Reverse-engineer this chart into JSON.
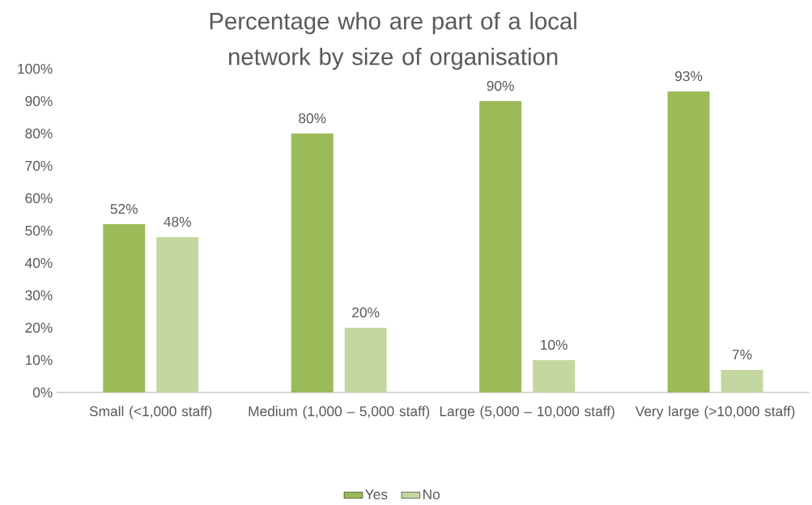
{
  "chart_data": {
    "type": "bar",
    "title": "Percentage who are part of a local network by size of organisation",
    "categories": [
      "Small (<1,000 staff)",
      "Medium (1,000 – 5,000 staff)",
      "Large (5,000 – 10,000 staff)",
      "Very large (>10,000 staff)"
    ],
    "series": [
      {
        "name": "Yes",
        "color": "#9bbb59",
        "values": [
          52,
          80,
          90,
          93
        ],
        "value_labels": [
          "52%",
          "80%",
          "90%",
          "93%"
        ]
      },
      {
        "name": "No",
        "color": "#c4d7a1",
        "values": [
          48,
          20,
          10,
          7
        ],
        "value_labels": [
          "48%",
          "20%",
          "10%",
          "7%"
        ]
      }
    ],
    "ylim": [
      0,
      100
    ],
    "yticks": [
      {
        "value": 0,
        "label": "0%"
      },
      {
        "value": 10,
        "label": "10%"
      },
      {
        "value": 20,
        "label": "20%"
      },
      {
        "value": 30,
        "label": "30%"
      },
      {
        "value": 40,
        "label": "40%"
      },
      {
        "value": 50,
        "label": "50%"
      },
      {
        "value": 60,
        "label": "60%"
      },
      {
        "value": 70,
        "label": "70%"
      },
      {
        "value": 80,
        "label": "80%"
      },
      {
        "value": 90,
        "label": "90%"
      },
      {
        "value": 100,
        "label": "100%"
      }
    ],
    "legend": "bottom"
  }
}
